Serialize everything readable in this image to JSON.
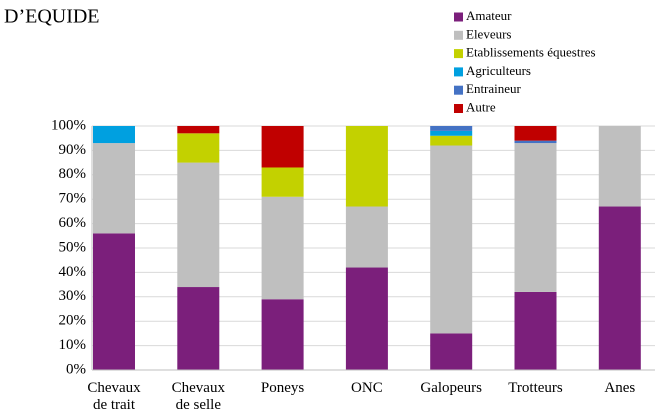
{
  "chart_data": {
    "type": "stacked_bar",
    "title": "D’EQUIDE",
    "categories": [
      "Chevaux de trait",
      "Chevaux de selle",
      "Poneys",
      "ONC",
      "Galopeurs",
      "Trotteurs",
      "Anes"
    ],
    "series": [
      {
        "name": "Amateur",
        "color": "#7b1f7b",
        "values": [
          56,
          34,
          29,
          42,
          15,
          32,
          67
        ]
      },
      {
        "name": "Eleveurs",
        "color": "#bfbfbf",
        "values": [
          37,
          51,
          42,
          25,
          77,
          61,
          33
        ]
      },
      {
        "name": "Etablissements équestres",
        "color": "#c3d100",
        "values": [
          0,
          12,
          12,
          33,
          4,
          0,
          0
        ]
      },
      {
        "name": "Agriculteurs",
        "color": "#00a0e0",
        "values": [
          7,
          0,
          0,
          0,
          2,
          0,
          0
        ]
      },
      {
        "name": "Entraineur",
        "color": "#4472c4",
        "values": [
          0,
          0,
          0,
          0,
          2,
          1,
          0
        ]
      },
      {
        "name": "Autre",
        "color": "#c00000",
        "values": [
          0,
          3,
          17,
          0,
          0,
          6,
          0
        ]
      }
    ],
    "ylim": [
      0,
      100
    ],
    "yticks": [
      {
        "value": 0,
        "label": "0%"
      },
      {
        "value": 10,
        "label": "10%"
      },
      {
        "value": 20,
        "label": "20%"
      },
      {
        "value": 30,
        "label": "30%"
      },
      {
        "value": 40,
        "label": "40%"
      },
      {
        "value": 50,
        "label": "50%"
      },
      {
        "value": 60,
        "label": "60%"
      },
      {
        "value": 70,
        "label": "70%"
      },
      {
        "value": 80,
        "label": "80%"
      },
      {
        "value": 90,
        "label": "90%"
      },
      {
        "value": 100,
        "label": "100%"
      }
    ],
    "grid": true
  }
}
